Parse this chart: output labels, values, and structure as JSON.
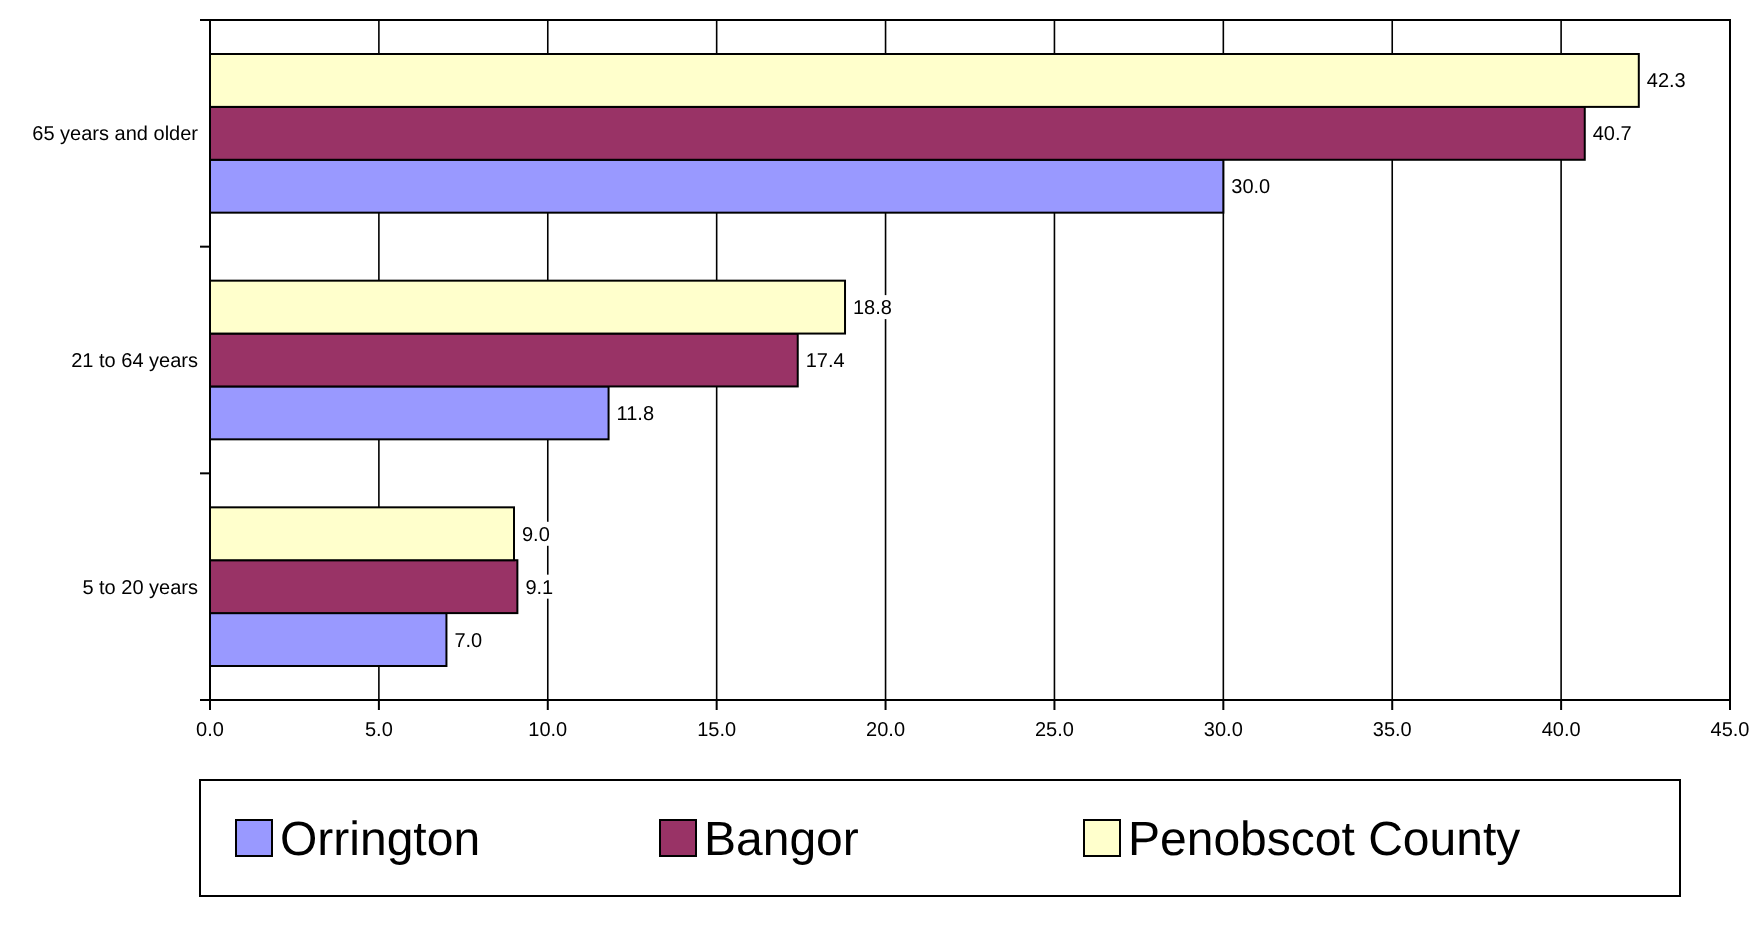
{
  "chart_data": {
    "type": "bar",
    "orientation": "horizontal",
    "categories": [
      "65 years and older",
      "21 to 64 years",
      "5 to 20 years"
    ],
    "series": [
      {
        "name": "Orrington",
        "color": "#9999ff",
        "values": [
          30.0,
          11.8,
          7.0
        ],
        "value_labels": [
          "30.0",
          "11.8",
          "7.0"
        ]
      },
      {
        "name": "Bangor",
        "color": "#993366",
        "values": [
          40.7,
          17.4,
          9.1
        ],
        "value_labels": [
          "40.7",
          "17.4",
          "9.1"
        ]
      },
      {
        "name": "Penobscot County",
        "color": "#ffffcc",
        "values": [
          42.3,
          18.8,
          9.0
        ],
        "value_labels": [
          "42.3",
          "18.8",
          "9.0"
        ]
      }
    ],
    "xlim": [
      0,
      45
    ],
    "xticks": [
      {
        "value": 0,
        "label": "0.0"
      },
      {
        "value": 5,
        "label": "5.0"
      },
      {
        "value": 10,
        "label": "10.0"
      },
      {
        "value": 15,
        "label": "15.0"
      },
      {
        "value": 20,
        "label": "20.0"
      },
      {
        "value": 25,
        "label": "25.0"
      },
      {
        "value": 30,
        "label": "30.0"
      },
      {
        "value": 35,
        "label": "35.0"
      },
      {
        "value": 40,
        "label": "40.0"
      },
      {
        "value": 45,
        "label": "45.0"
      }
    ],
    "grid": "x",
    "legend": "bottom"
  }
}
